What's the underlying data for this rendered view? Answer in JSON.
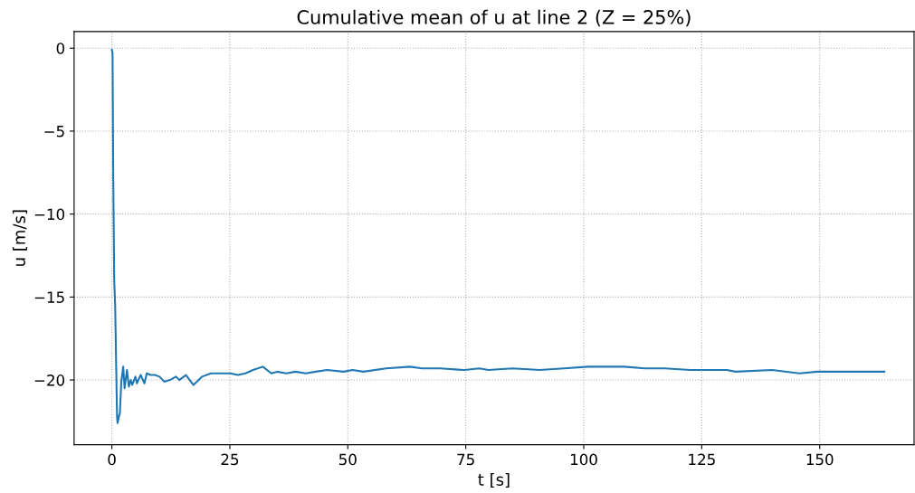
{
  "chart_data": {
    "type": "line",
    "title": "Cumulative mean of u at line 2 (Z = 25%)",
    "xlabel": "t [s]",
    "ylabel": "u [m/s]",
    "xlim": [
      -8,
      170
    ],
    "ylim": [
      -23.9,
      1
    ],
    "xticks": [
      0,
      25,
      50,
      75,
      100,
      125,
      150
    ],
    "yticks": [
      0,
      -5,
      -10,
      -15,
      -20
    ],
    "grid": true,
    "line_style": "solid",
    "marker": "none",
    "series": [
      {
        "color": "#1f77b4",
        "x": [
          0,
          0.15,
          0.3,
          0.5,
          0.7,
          0.9,
          1.1,
          1.2,
          1.5,
          1.7,
          2.0,
          2.4,
          2.7,
          3.2,
          3.6,
          4.0,
          4.3,
          5.0,
          5.3,
          6.1,
          6.9,
          7.4,
          8.2,
          9.1,
          10.1,
          11.1,
          12.3,
          13.6,
          14.3,
          15.7,
          17.3,
          19.1,
          21.0,
          22.9,
          25.1,
          26.7,
          28.3,
          29.9,
          32.0,
          33.8,
          35.0,
          37.0,
          38.9,
          41.1,
          43.2,
          45.6,
          49.1,
          51.0,
          53.3,
          58.1,
          63.2,
          65.7,
          69.6,
          74.7,
          77.9,
          79.8,
          84.9,
          90.7,
          95.8,
          100.9,
          104.7,
          108.6,
          113.0,
          117.2,
          122.6,
          126.5,
          130.3,
          132.2,
          139.9,
          145.7,
          149.5,
          154.6,
          157.8,
          163.7
        ],
        "values": [
          -0.1,
          -0.3,
          -8,
          -14,
          -15.5,
          -18.9,
          -22.2,
          -22.6,
          -22.2,
          -22.0,
          -20.1,
          -19.2,
          -20.5,
          -19.4,
          -20.4,
          -20.0,
          -20.3,
          -19.8,
          -20.2,
          -19.7,
          -20.2,
          -19.6,
          -19.7,
          -19.7,
          -19.8,
          -20.1,
          -20.0,
          -19.8,
          -20.0,
          -19.7,
          -20.3,
          -19.8,
          -19.6,
          -19.6,
          -19.6,
          -19.7,
          -19.6,
          -19.4,
          -19.2,
          -19.6,
          -19.5,
          -19.6,
          -19.5,
          -19.6,
          -19.5,
          -19.4,
          -19.5,
          -19.4,
          -19.5,
          -19.3,
          -19.2,
          -19.3,
          -19.3,
          -19.4,
          -19.3,
          -19.4,
          -19.3,
          -19.4,
          -19.3,
          -19.2,
          -19.2,
          -19.2,
          -19.3,
          -19.3,
          -19.4,
          -19.4,
          -19.4,
          -19.5,
          -19.4,
          -19.6,
          -19.5,
          -19.5,
          -19.5,
          -19.5
        ]
      }
    ]
  }
}
